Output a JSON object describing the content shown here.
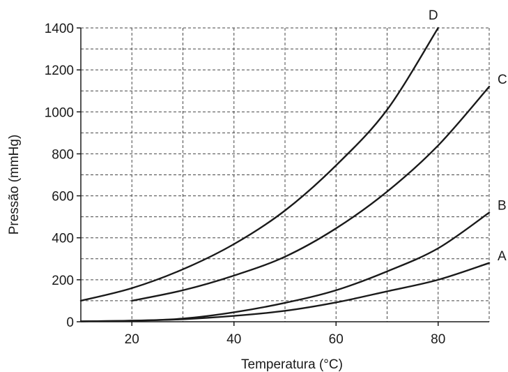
{
  "chart_data": {
    "type": "line",
    "xlabel": "Temperatura (°C)",
    "ylabel": "Pressão (mmHg)",
    "xlim": [
      10,
      90
    ],
    "ylim": [
      0,
      1400
    ],
    "x_ticks": [
      20,
      40,
      60,
      80
    ],
    "y_ticks": [
      0,
      200,
      400,
      600,
      800,
      1000,
      1200,
      1400
    ],
    "grid": true,
    "series": [
      {
        "name": "A",
        "x": [
          10,
          20,
          30,
          40,
          50,
          60,
          70,
          80,
          90
        ],
        "y": [
          2,
          5,
          12,
          28,
          52,
          92,
          145,
          200,
          280
        ]
      },
      {
        "name": "B",
        "x": [
          10,
          20,
          30,
          40,
          50,
          60,
          70,
          80,
          90
        ],
        "y": [
          2,
          5,
          15,
          45,
          90,
          150,
          240,
          350,
          520
        ]
      },
      {
        "name": "C",
        "x": [
          20,
          30,
          40,
          50,
          60,
          70,
          80,
          90
        ],
        "y": [
          100,
          150,
          220,
          310,
          445,
          620,
          840,
          1120
        ]
      },
      {
        "name": "D",
        "x": [
          10,
          20,
          30,
          40,
          50,
          60,
          70,
          80
        ],
        "y": [
          100,
          160,
          250,
          370,
          530,
          745,
          1010,
          1400
        ]
      }
    ]
  }
}
